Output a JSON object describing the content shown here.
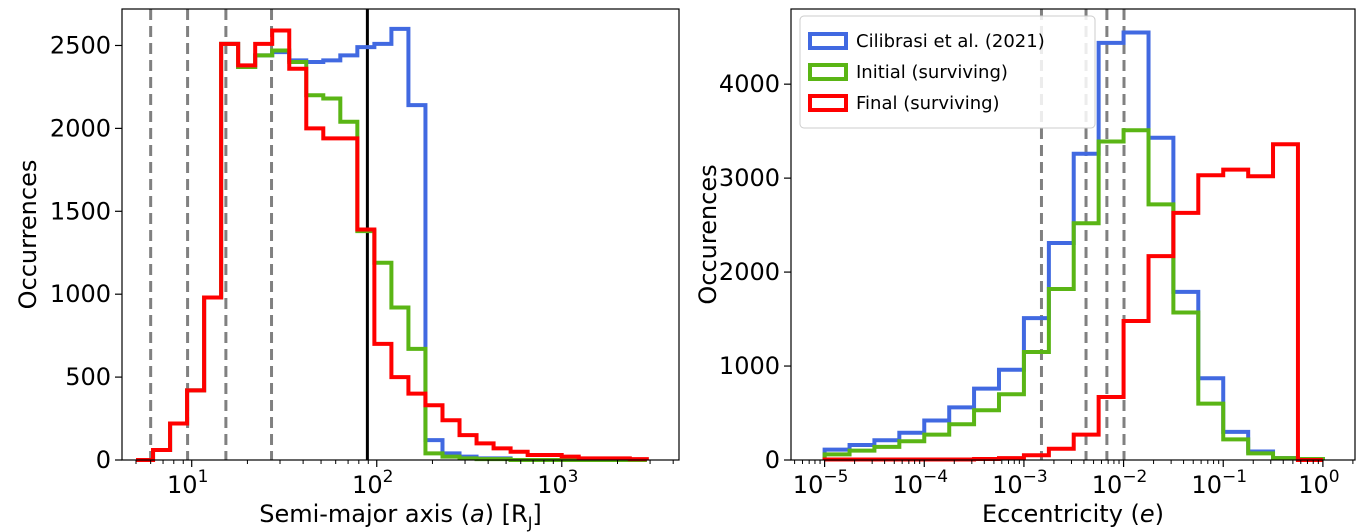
{
  "chart_data": [
    {
      "type": "histogram-step",
      "xscale": "log",
      "xlim": [
        4.2,
        4300
      ],
      "ylim": [
        0,
        2720
      ],
      "xlabel_pre": "Semi-major axis (",
      "xlabel_var": "a",
      "xlabel_post": ") [R",
      "xlabel_sub": "J",
      "xlabel_end": "]",
      "ylabel": "Occurrences",
      "yticks": [
        0,
        500,
        1000,
        1500,
        2000,
        2500
      ],
      "xticks": [
        {
          "base": "10",
          "exp": "1",
          "value": 10
        },
        {
          "base": "10",
          "exp": "2",
          "value": 100
        },
        {
          "base": "10",
          "exp": "3",
          "value": 1000
        }
      ],
      "vlines_dashed": [
        6.0,
        9.5,
        15.3,
        27
      ],
      "vline_solid": 89,
      "series": [
        {
          "color": "#4169e1",
          "edges": [
            5,
            6.18,
            7.64,
            9.44,
            11.67,
            14.42,
            17.82,
            22.03,
            27.23,
            33.66,
            41.6,
            51.41,
            63.54,
            78.54,
            97.08,
            120.0,
            148.3,
            183.3,
            226.6,
            280.1,
            346.2,
            427.9,
            528.9,
            653.8,
            808.1,
            998.9,
            1234.6,
            1526,
            1886,
            2331,
            2882
          ],
          "values": [
            0,
            60,
            220,
            420,
            980,
            2510,
            2370,
            2440,
            2460,
            2410,
            2400,
            2410,
            2440,
            2490,
            2510,
            2600,
            2140,
            120,
            40,
            20,
            10,
            10,
            0,
            0,
            0,
            0,
            0,
            0,
            0,
            0
          ]
        },
        {
          "color": "#5ab515",
          "edges": [
            5,
            6.18,
            7.64,
            9.44,
            11.67,
            14.42,
            17.82,
            22.03,
            27.23,
            33.66,
            41.6,
            51.41,
            63.54,
            78.54,
            97.08,
            120.0,
            148.3,
            183.3,
            226.6,
            280.1,
            346.2,
            427.9,
            528.9,
            653.8,
            808.1,
            998.9,
            1234.6,
            1526,
            1886,
            2331,
            2882
          ],
          "values": [
            0,
            60,
            220,
            420,
            980,
            2510,
            2370,
            2440,
            2470,
            2400,
            2200,
            2180,
            2040,
            1380,
            1190,
            920,
            670,
            40,
            20,
            10,
            5,
            5,
            0,
            0,
            0,
            0,
            0,
            0,
            0,
            0
          ]
        },
        {
          "color": "#ff0000",
          "edges": [
            5,
            6.18,
            7.64,
            9.44,
            11.67,
            14.42,
            17.82,
            22.03,
            27.23,
            33.66,
            41.6,
            51.41,
            63.54,
            78.54,
            97.08,
            120.0,
            148.3,
            183.3,
            226.6,
            280.1,
            346.2,
            427.9,
            528.9,
            653.8,
            808.1,
            998.9,
            1234.6,
            1526,
            1886,
            2331,
            2882
          ],
          "values": [
            0,
            60,
            220,
            420,
            980,
            2510,
            2380,
            2510,
            2590,
            2360,
            2000,
            1940,
            1940,
            1390,
            700,
            500,
            400,
            330,
            240,
            150,
            100,
            70,
            50,
            30,
            30,
            20,
            10,
            10,
            10,
            5
          ]
        }
      ]
    },
    {
      "type": "histogram-step",
      "xscale": "log",
      "xlim": [
        4.6e-06,
        2.1
      ],
      "ylim": [
        0,
        4800
      ],
      "xlabel_pre": "Eccentricity (",
      "xlabel_var": "e",
      "xlabel_post": ")",
      "ylabel": "Occurences",
      "yticks": [
        0,
        1000,
        2000,
        3000,
        4000
      ],
      "xticks": [
        {
          "base": "10",
          "exp": "−5",
          "value": 1e-05
        },
        {
          "base": "10",
          "exp": "−4",
          "value": 0.0001
        },
        {
          "base": "10",
          "exp": "−3",
          "value": 0.001
        },
        {
          "base": "10",
          "exp": "−2",
          "value": 0.01
        },
        {
          "base": "10",
          "exp": "−1",
          "value": 0.1
        },
        {
          "base": "10",
          "exp": "0",
          "value": 1
        }
      ],
      "vlines_dashed": [
        0.0015,
        0.0042,
        0.0068,
        0.0101
      ],
      "legend": {
        "placement": "upper-left",
        "entries": [
          "Cilibrasi et al. (2021)",
          "Initial (surviving)",
          "Final (surviving)"
        ]
      },
      "series": [
        {
          "name": "Cilibrasi et al. (2021)",
          "color": "#4169e1",
          "edges": [
            1e-05,
            1.78e-05,
            3.16e-05,
            5.62e-05,
            0.0001,
            0.000178,
            0.000316,
            0.000562,
            0.001,
            0.00178,
            0.00316,
            0.00562,
            0.01,
            0.0178,
            0.0316,
            0.0562,
            0.1,
            0.178,
            0.316,
            0.562,
            1
          ],
          "values": [
            110,
            160,
            210,
            290,
            420,
            560,
            760,
            960,
            1510,
            2310,
            3260,
            4440,
            4550,
            3430,
            1790,
            870,
            300,
            90,
            20,
            10
          ]
        },
        {
          "name": "Initial (surviving)",
          "color": "#5ab515",
          "edges": [
            1e-05,
            1.78e-05,
            3.16e-05,
            5.62e-05,
            0.0001,
            0.000178,
            0.000316,
            0.000562,
            0.001,
            0.00178,
            0.00316,
            0.00562,
            0.01,
            0.0178,
            0.0316,
            0.0562,
            0.1,
            0.178,
            0.316,
            0.562,
            1
          ],
          "values": [
            60,
            100,
            140,
            200,
            270,
            380,
            530,
            700,
            1150,
            1820,
            2520,
            3390,
            3510,
            2720,
            1570,
            600,
            220,
            70,
            20,
            10
          ]
        },
        {
          "name": "Final (surviving)",
          "color": "#ff0000",
          "edges": [
            1e-05,
            1.78e-05,
            3.16e-05,
            5.62e-05,
            0.0001,
            0.000178,
            0.000316,
            0.000562,
            0.001,
            0.00178,
            0.00316,
            0.00562,
            0.01,
            0.0178,
            0.0316,
            0.0562,
            0.1,
            0.178,
            0.316,
            0.562,
            1
          ],
          "values": [
            5,
            5,
            5,
            5,
            5,
            5,
            10,
            20,
            50,
            120,
            270,
            670,
            1480,
            2170,
            2630,
            3030,
            3090,
            3020,
            3360,
            0
          ]
        }
      ]
    }
  ]
}
